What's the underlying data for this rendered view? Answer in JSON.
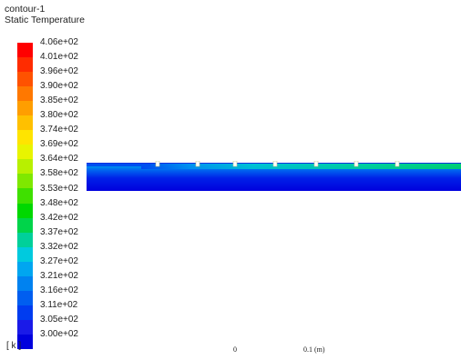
{
  "contour": {
    "name": "contour-1",
    "variable": "Static Temperature"
  },
  "legend": {
    "unit": "[ k ]",
    "labels": [
      "4.06e+02",
      "4.01e+02",
      "3.96e+02",
      "3.90e+02",
      "3.85e+02",
      "3.80e+02",
      "3.74e+02",
      "3.69e+02",
      "3.64e+02",
      "3.58e+02",
      "3.53e+02",
      "3.48e+02",
      "3.42e+02",
      "3.37e+02",
      "3.32e+02",
      "3.27e+02",
      "3.21e+02",
      "3.16e+02",
      "3.11e+02",
      "3.05e+02",
      "3.00e+02"
    ],
    "colors": [
      "#ff0000",
      "#ff2c00",
      "#ff5200",
      "#ff7800",
      "#ff9e00",
      "#ffc000",
      "#ffe400",
      "#e8f400",
      "#b8f000",
      "#7fe800",
      "#3fe000",
      "#00d800",
      "#00d44a",
      "#00d09a",
      "#00cade",
      "#00a6f0",
      "#0082f0",
      "#005ef0",
      "#003cf0",
      "#1a1ae8",
      "#0000dd"
    ]
  },
  "scale": {
    "zero": "0",
    "label": "0.1 (m)"
  }
}
